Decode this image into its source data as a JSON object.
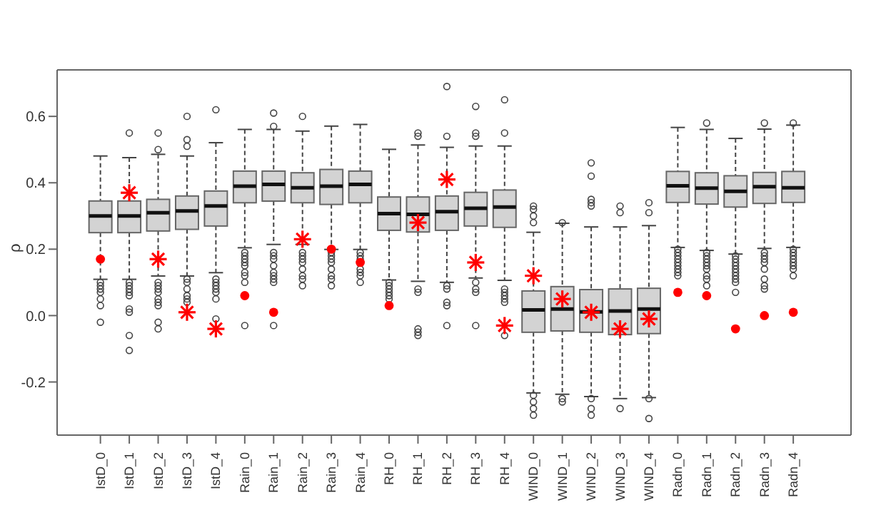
{
  "chart_data": {
    "type": "box",
    "ylabel": "ρ",
    "color": "#d3d3d3",
    "categories": [
      "IstD_0",
      "IstD_1",
      "IstD_2",
      "IstD_3",
      "IstD_4",
      "Rain_0",
      "Rain_1",
      "Rain_2",
      "Rain_3",
      "Rain_4",
      "RH_0",
      "RH_1",
      "RH_2",
      "RH_3",
      "RH_4",
      "WIND_0",
      "WIND_1",
      "WIND_2",
      "WIND_3",
      "WIND_4",
      "Radn_0",
      "Radn_1",
      "Radn_2",
      "Radn_3",
      "Radn_4"
    ],
    "boxes": [
      {
        "low": 0.11,
        "q1": 0.25,
        "median": 0.3,
        "q3": 0.345,
        "high": 0.48,
        "outliers": [
          0.1,
          0.09,
          0.08,
          0.07,
          0.05,
          0.03,
          -0.02
        ]
      },
      {
        "low": 0.11,
        "q1": 0.25,
        "median": 0.3,
        "q3": 0.345,
        "high": 0.475,
        "outliers": [
          0.55,
          0.1,
          0.09,
          0.08,
          0.07,
          0.06,
          0.02,
          0.01,
          -0.06,
          -0.105
        ]
      },
      {
        "low": 0.12,
        "q1": 0.255,
        "median": 0.31,
        "q3": 0.35,
        "high": 0.485,
        "outliers": [
          0.55,
          0.5,
          0.1,
          0.09,
          0.08,
          0.07,
          0.05,
          0.04,
          0.03,
          -0.02,
          -0.04
        ]
      },
      {
        "low": 0.12,
        "q1": 0.26,
        "median": 0.315,
        "q3": 0.36,
        "high": 0.48,
        "outliers": [
          0.6,
          0.53,
          0.51,
          0.11,
          0.1,
          0.08,
          0.06,
          0.05,
          0.04
        ]
      },
      {
        "low": 0.13,
        "q1": 0.27,
        "median": 0.33,
        "q3": 0.375,
        "high": 0.52,
        "outliers": [
          0.62,
          0.11,
          0.1,
          0.09,
          0.08,
          0.07,
          0.05,
          -0.01
        ]
      },
      {
        "low": 0.205,
        "q1": 0.34,
        "median": 0.39,
        "q3": 0.435,
        "high": 0.56,
        "outliers": [
          0.19,
          0.18,
          0.17,
          0.16,
          0.15,
          0.13,
          0.12,
          0.1,
          -0.03
        ]
      },
      {
        "low": 0.215,
        "q1": 0.345,
        "median": 0.395,
        "q3": 0.435,
        "high": 0.56,
        "outliers": [
          0.61,
          0.57,
          0.19,
          0.18,
          0.17,
          0.15,
          0.13,
          0.12,
          0.11,
          0.1,
          -0.03
        ]
      },
      {
        "low": 0.215,
        "q1": 0.34,
        "median": 0.385,
        "q3": 0.43,
        "high": 0.555,
        "outliers": [
          0.6,
          0.19,
          0.18,
          0.17,
          0.16,
          0.14,
          0.12,
          0.11,
          0.09
        ]
      },
      {
        "low": 0.2,
        "q1": 0.335,
        "median": 0.39,
        "q3": 0.44,
        "high": 0.57,
        "outliers": [
          0.19,
          0.18,
          0.17,
          0.16,
          0.14,
          0.12,
          0.11,
          0.09
        ]
      },
      {
        "low": 0.2,
        "q1": 0.34,
        "median": 0.395,
        "q3": 0.435,
        "high": 0.575,
        "outliers": [
          0.19,
          0.18,
          0.17,
          0.14,
          0.13,
          0.12,
          0.1
        ]
      },
      {
        "low": 0.108,
        "q1": 0.257,
        "median": 0.307,
        "q3": 0.357,
        "high": 0.5,
        "outliers": [
          0.1,
          0.09,
          0.08,
          0.07,
          0.06,
          0.05
        ]
      },
      {
        "low": 0.104,
        "q1": 0.252,
        "median": 0.305,
        "q3": 0.357,
        "high": 0.513,
        "outliers": [
          0.55,
          0.54,
          0.08,
          0.07,
          -0.04,
          -0.05,
          -0.06
        ]
      },
      {
        "low": 0.101,
        "q1": 0.257,
        "median": 0.313,
        "q3": 0.36,
        "high": 0.506,
        "outliers": [
          0.69,
          0.54,
          0.09,
          0.08,
          0.04,
          0.03,
          -0.03
        ]
      },
      {
        "low": 0.114,
        "q1": 0.27,
        "median": 0.323,
        "q3": 0.371,
        "high": 0.51,
        "outliers": [
          0.63,
          0.55,
          0.54,
          0.1,
          0.08,
          0.07,
          -0.03
        ]
      },
      {
        "low": 0.107,
        "q1": 0.266,
        "median": 0.327,
        "q3": 0.378,
        "high": 0.51,
        "outliers": [
          0.65,
          0.55,
          0.08,
          0.07,
          0.06,
          0.05,
          0.04,
          -0.06
        ]
      },
      {
        "low": -0.232,
        "q1": -0.05,
        "median": 0.017,
        "q3": 0.074,
        "high": 0.25,
        "outliers": [
          0.33,
          0.32,
          0.3,
          0.28,
          -0.24,
          -0.26,
          -0.28,
          -0.3
        ]
      },
      {
        "low": -0.236,
        "q1": -0.046,
        "median": 0.02,
        "q3": 0.087,
        "high": 0.277,
        "outliers": [
          0.28,
          -0.25,
          -0.26
        ]
      },
      {
        "low": -0.243,
        "q1": -0.05,
        "median": 0.011,
        "q3": 0.078,
        "high": 0.266,
        "outliers": [
          0.46,
          0.42,
          0.35,
          0.34,
          0.33,
          -0.25,
          -0.28,
          -0.3
        ]
      },
      {
        "low": -0.249,
        "q1": -0.057,
        "median": 0.014,
        "q3": 0.08,
        "high": 0.266,
        "outliers": [
          0.33,
          0.31,
          -0.28
        ]
      },
      {
        "low": -0.246,
        "q1": -0.054,
        "median": 0.02,
        "q3": 0.082,
        "high": 0.27,
        "outliers": [
          0.34,
          0.31,
          -0.25,
          -0.31
        ]
      },
      {
        "low": 0.206,
        "q1": 0.341,
        "median": 0.391,
        "q3": 0.434,
        "high": 0.566,
        "outliers": [
          0.2,
          0.19,
          0.18,
          0.17,
          0.16,
          0.15,
          0.14,
          0.13,
          0.12
        ]
      },
      {
        "low": 0.197,
        "q1": 0.336,
        "median": 0.384,
        "q3": 0.43,
        "high": 0.56,
        "outliers": [
          0.58,
          0.19,
          0.18,
          0.17,
          0.16,
          0.15,
          0.14,
          0.12,
          0.11,
          0.09
        ]
      },
      {
        "low": 0.186,
        "q1": 0.327,
        "median": 0.374,
        "q3": 0.421,
        "high": 0.533,
        "outliers": [
          0.18,
          0.17,
          0.16,
          0.15,
          0.14,
          0.13,
          0.12,
          0.11,
          0.1,
          0.07
        ]
      },
      {
        "low": 0.203,
        "q1": 0.338,
        "median": 0.388,
        "q3": 0.431,
        "high": 0.561,
        "outliers": [
          0.58,
          0.19,
          0.18,
          0.17,
          0.16,
          0.14,
          0.11,
          0.09,
          0.08
        ]
      },
      {
        "low": 0.206,
        "q1": 0.341,
        "median": 0.385,
        "q3": 0.434,
        "high": 0.573,
        "outliers": [
          0.58,
          0.2,
          0.19,
          0.18,
          0.17,
          0.16,
          0.15,
          0.14,
          0.12
        ]
      }
    ],
    "series": [
      {
        "type": "scatter",
        "marker": "circle",
        "color": "#ff0000",
        "x": [
          "IstD_0",
          "Rain_0",
          "Rain_1",
          "Rain_3",
          "Rain_4",
          "RH_0",
          "Radn_0",
          "Radn_1",
          "Radn_2",
          "Radn_3",
          "Radn_4"
        ],
        "values": [
          0.17,
          0.06,
          0.01,
          0.2,
          0.16,
          0.03,
          0.07,
          0.06,
          -0.04,
          0.0,
          0.01
        ]
      },
      {
        "type": "scatter",
        "marker": "cross",
        "color": "#ff0000",
        "x": [
          "IstD_1",
          "IstD_2",
          "IstD_3",
          "IstD_4",
          "Rain_2",
          "RH_1",
          "RH_2",
          "RH_3",
          "RH_4",
          "WIND_0",
          "WIND_1",
          "WIND_2",
          "WIND_3",
          "WIND_4"
        ],
        "values": [
          0.37,
          0.17,
          0.01,
          -0.04,
          0.23,
          0.28,
          0.41,
          0.16,
          -0.03,
          0.12,
          0.05,
          0.01,
          -0.04,
          -0.01
        ]
      }
    ],
    "ylim": [
      -0.36,
      0.74
    ],
    "yticks": [
      {
        "value": -0.2,
        "label": "-0.2"
      },
      {
        "value": 0,
        "label": "0.0"
      },
      0.2,
      0.4,
      0.6
    ],
    "grid": false
  }
}
